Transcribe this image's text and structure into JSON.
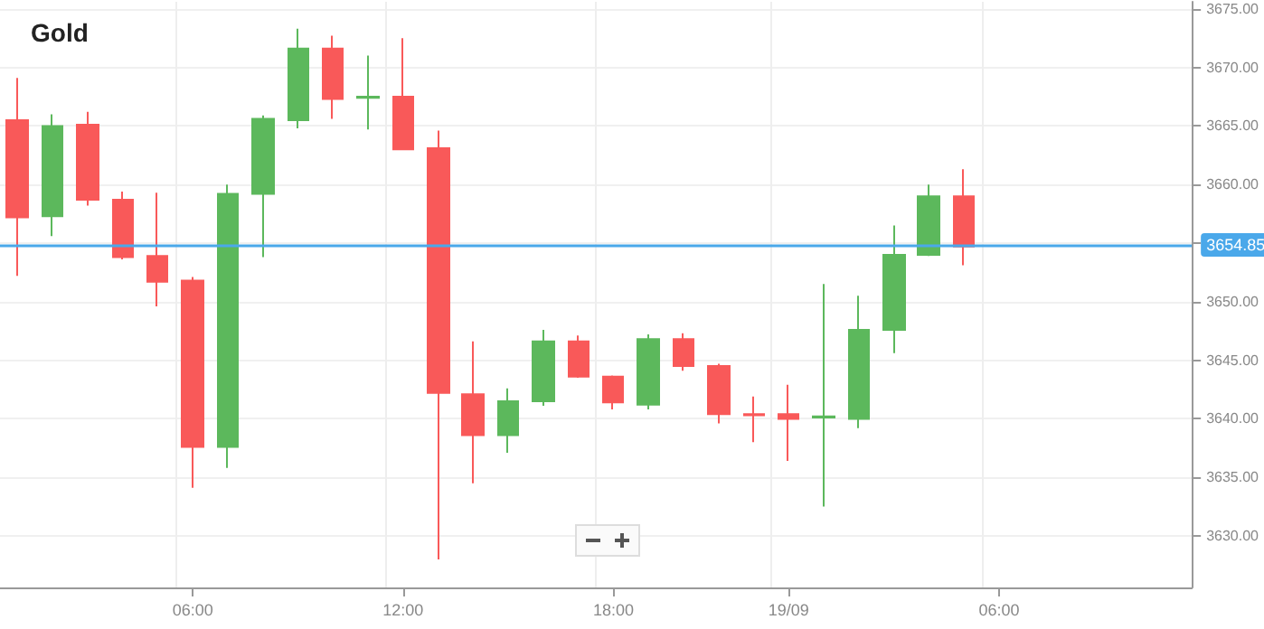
{
  "chart_data": {
    "type": "candlestick",
    "title": "Gold",
    "categories": [
      null,
      null,
      null,
      null,
      null,
      "06:00",
      null,
      null,
      null,
      null,
      null,
      "12:00",
      null,
      null,
      null,
      null,
      null,
      "18:00",
      null,
      null,
      null,
      null,
      "19/09",
      null,
      null,
      null,
      null,
      null,
      "06:00",
      null,
      null,
      null,
      null,
      null
    ],
    "ohlc": [
      [
        3665.5,
        3669.1,
        3652.2,
        3657.2
      ],
      [
        3657.3,
        3666.0,
        3655.6,
        3665.0
      ],
      [
        3665.1,
        3666.2,
        3658.2,
        3658.7
      ],
      [
        3658.7,
        3659.4,
        3653.6,
        3653.8
      ],
      [
        3653.9,
        3659.3,
        3649.6,
        3651.7
      ],
      [
        3651.8,
        3652.1,
        3634.1,
        3637.6
      ],
      [
        3637.6,
        3660.0,
        3635.8,
        3659.2
      ],
      [
        3659.2,
        3665.9,
        3653.8,
        3665.6
      ],
      [
        3665.5,
        3673.3,
        3664.8,
        3671.6
      ],
      [
        3671.6,
        3672.7,
        3665.6,
        3667.3
      ],
      [
        3667.4,
        3671.0,
        3664.7,
        3667.5
      ],
      [
        3667.5,
        3672.5,
        3663.0,
        3663.0
      ],
      [
        3663.1,
        3664.6,
        3628.0,
        3642.2
      ],
      [
        3642.1,
        3646.6,
        3634.5,
        3638.6
      ],
      [
        3638.6,
        3642.6,
        3637.1,
        3641.5
      ],
      [
        3641.5,
        3647.6,
        3641.1,
        3646.6
      ],
      [
        3646.6,
        3647.1,
        3643.5,
        3643.6
      ],
      [
        3643.6,
        3643.7,
        3640.8,
        3641.4
      ],
      [
        3641.2,
        3647.2,
        3640.8,
        3646.8
      ],
      [
        3646.8,
        3647.3,
        3644.1,
        3644.5
      ],
      [
        3644.5,
        3644.7,
        3639.6,
        3640.4
      ],
      [
        3640.4,
        3641.9,
        3638.0,
        3640.3
      ],
      [
        3640.4,
        3642.9,
        3636.4,
        3640.0
      ],
      [
        3640.1,
        3651.5,
        3632.5,
        3640.2
      ],
      [
        3640.0,
        3650.5,
        3639.2,
        3647.6
      ],
      [
        3647.6,
        3656.5,
        3645.6,
        3654.0
      ],
      [
        3654.0,
        3660.0,
        3653.9,
        3659.0
      ],
      [
        3659.0,
        3661.3,
        3653.1,
        3654.7
      ],
      null,
      null,
      null,
      null,
      null,
      null
    ],
    "colors": [
      "#f95959",
      "#5cb85c",
      "#f95959",
      "#f95959",
      "#f95959",
      "#f95959",
      "#5cb85c",
      "#5cb85c",
      "#5cb85c",
      "#f95959",
      "#5cb85c",
      "#f95959",
      "#f95959",
      "#f95959",
      "#5cb85c",
      "#5cb85c",
      "#f95959",
      "#f95959",
      "#5cb85c",
      "#f95959",
      "#f95959",
      "#f95959",
      "#f95959",
      "#5cb85c",
      "#5cb85c",
      "#5cb85c",
      "#5cb85c",
      "#f95959",
      null,
      null,
      null,
      null,
      null,
      null
    ],
    "ylim": [
      3625.6,
      3675.6
    ],
    "yticks": [
      {
        "value": 3630,
        "label": "3630.00"
      },
      {
        "value": 3635,
        "label": "3635.00"
      },
      {
        "value": 3640,
        "label": "3640.00"
      },
      {
        "value": 3645,
        "label": "3645.00"
      },
      {
        "value": 3650,
        "label": "3650.00"
      },
      {
        "value": 3655,
        "label": null
      },
      {
        "value": 3660,
        "label": "3660.00"
      },
      {
        "value": 3665,
        "label": "3665.00"
      },
      {
        "value": 3670,
        "label": "3670.00"
      },
      {
        "value": 3675,
        "label": "3675.00"
      }
    ],
    "ref_lines": [
      {
        "axis": "y",
        "value": 3654.85,
        "label": "3654.85",
        "color": "#4aa8ea"
      }
    ],
    "grid": true
  }
}
